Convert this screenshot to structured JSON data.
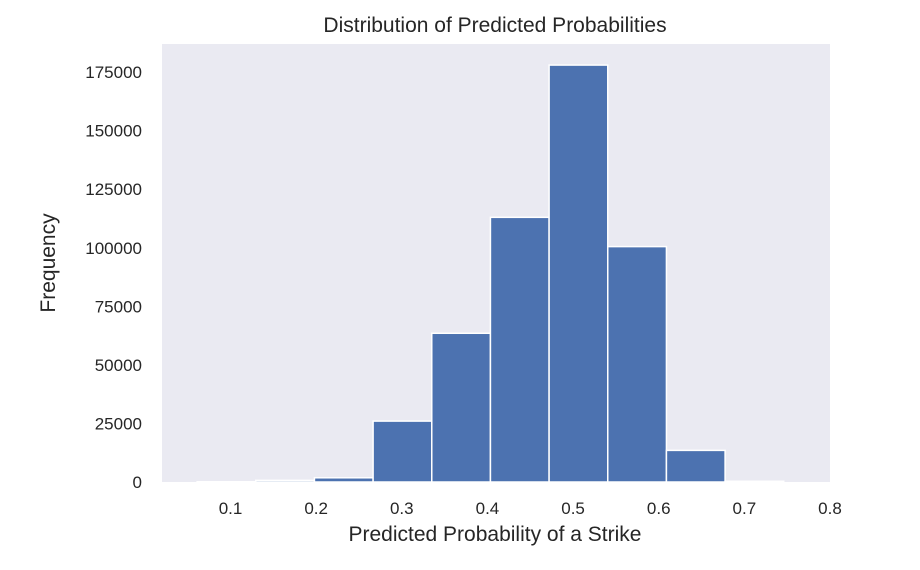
{
  "chart_data": {
    "type": "bar",
    "title": "Distribution of Predicted Probabilities",
    "xlabel": "Predicted Probability of a Strike",
    "ylabel": "Frequency",
    "xlim": [
      0.02,
      0.8
    ],
    "ylim": [
      0,
      187000
    ],
    "grid": false,
    "bin_edges": [
      0.061,
      0.1295,
      0.198,
      0.2665,
      0.335,
      0.4035,
      0.472,
      0.5405,
      0.609,
      0.6775,
      0.746
    ],
    "values": [
      100,
      700,
      1800,
      26000,
      63500,
      113000,
      178000,
      100500,
      13500,
      300
    ],
    "x_ticks": [
      {
        "value": 0.1,
        "label": "0.1"
      },
      {
        "value": 0.2,
        "label": "0.2"
      },
      {
        "value": 0.3,
        "label": "0.3"
      },
      {
        "value": 0.4,
        "label": "0.4"
      },
      {
        "value": 0.5,
        "label": "0.5"
      },
      {
        "value": 0.6,
        "label": "0.6"
      },
      {
        "value": 0.7,
        "label": "0.7"
      },
      {
        "value": 0.8,
        "label": "0.8"
      }
    ],
    "y_ticks": [
      {
        "value": 0,
        "label": "0"
      },
      {
        "value": 25000,
        "label": "25000"
      },
      {
        "value": 50000,
        "label": "50000"
      },
      {
        "value": 75000,
        "label": "75000"
      },
      {
        "value": 100000,
        "label": "100000"
      },
      {
        "value": 125000,
        "label": "125000"
      },
      {
        "value": 150000,
        "label": "150000"
      },
      {
        "value": 175000,
        "label": "175000"
      }
    ]
  },
  "colors": {
    "bar_fill": "#4c72b0",
    "bar_edge": "#ffffff",
    "plot_background": "#eaeaf2"
  }
}
